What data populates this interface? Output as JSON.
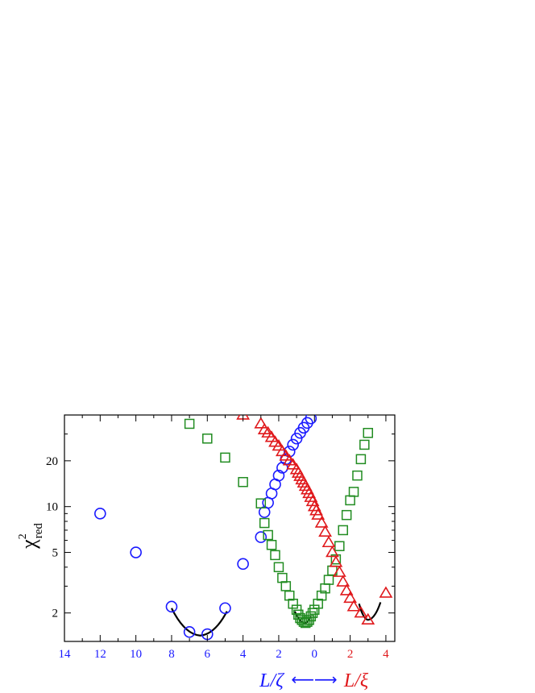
{
  "chart_data": {
    "type": "scatter",
    "title": "",
    "ylabel": {
      "symbol": "χ",
      "superscript": "2",
      "subscript": "red"
    },
    "xlabel": {
      "left": "L/ζ",
      "arrow": "⟵⟶",
      "right": "L/ξ"
    },
    "yscale": "log",
    "ylim": [
      1.3,
      40
    ],
    "yticks": [
      2,
      5,
      10,
      20
    ],
    "xlim": [
      -14,
      4.5
    ],
    "x_ticks_left": {
      "positions": [
        -14,
        -12,
        -10,
        -8,
        -6,
        -4,
        -2
      ],
      "labels": [
        "14",
        "12",
        "10",
        "8",
        "6",
        "4",
        "2"
      ],
      "color": "#1a1aff"
    },
    "x_ticks_center": {
      "positions": [
        0
      ],
      "labels": [
        "0"
      ],
      "color": "#1a1aff"
    },
    "x_ticks_right": {
      "positions": [
        2,
        4
      ],
      "labels": [
        "2",
        "4"
      ],
      "color": "#e0191c"
    },
    "colors": {
      "blue": "#1a1aff",
      "green": "#218c21",
      "red": "#e0191c",
      "fit": "#000000"
    },
    "series": [
      {
        "marker": "circle",
        "color": "#1a1aff",
        "x": [
          -12,
          -10,
          -8,
          -7,
          -6,
          -5,
          -4,
          -3,
          -2.8,
          -2.6,
          -2.4,
          -2.2,
          -2.0,
          -1.8,
          -1.6,
          -1.4,
          -1.2,
          -1.0,
          -0.8,
          -0.6,
          -0.4,
          -0.2
        ],
        "y": [
          9,
          5,
          2.2,
          1.5,
          1.45,
          2.15,
          4.2,
          6.3,
          9.2,
          10.6,
          12.2,
          14.0,
          16.0,
          18.0,
          20.5,
          23.0,
          25.5,
          28.0,
          30.5,
          33.0,
          35.5,
          38.0
        ]
      },
      {
        "marker": "square",
        "color": "#218c21",
        "x": [
          -7,
          -6,
          -5,
          -4,
          -3,
          -2.8,
          -2.6,
          -2.4,
          -2.2,
          -2.0,
          -1.8,
          -1.6,
          -1.4,
          -1.2,
          -1.0,
          -0.9,
          -0.8,
          -0.7,
          -0.6,
          -0.5,
          -0.4,
          -0.3,
          -0.2,
          -0.1,
          0.0,
          0.2,
          0.4,
          0.6,
          0.8,
          1.0,
          1.2,
          1.4,
          1.6,
          1.8,
          2.0,
          2.2,
          2.4,
          2.6,
          2.8,
          3.0
        ],
        "y": [
          35,
          28,
          21,
          14.5,
          10.5,
          7.8,
          6.5,
          5.6,
          4.8,
          4.0,
          3.4,
          3.0,
          2.6,
          2.3,
          2.1,
          1.95,
          1.85,
          1.8,
          1.75,
          1.72,
          1.75,
          1.8,
          1.9,
          2.0,
          2.1,
          2.3,
          2.6,
          2.9,
          3.3,
          3.8,
          4.5,
          5.5,
          7.0,
          8.8,
          11.0,
          12.5,
          16.0,
          20.5,
          25.5,
          30.5
        ]
      },
      {
        "marker": "triangle",
        "color": "#e0191c",
        "x": [
          -4,
          -3,
          -2.8,
          -2.6,
          -2.4,
          -2.2,
          -2.0,
          -1.8,
          -1.6,
          -1.4,
          -1.2,
          -1.0,
          -0.9,
          -0.8,
          -0.7,
          -0.6,
          -0.5,
          -0.4,
          -0.3,
          -0.2,
          -0.1,
          0.0,
          0.1,
          0.2,
          0.4,
          0.6,
          0.8,
          1.0,
          1.2,
          1.4,
          1.6,
          1.8,
          2.0,
          2.2,
          2.6,
          3.0,
          4.0
        ],
        "y": [
          40,
          35,
          32,
          30.5,
          28.5,
          26.5,
          25,
          23,
          21.5,
          20,
          18.8,
          17.5,
          16.6,
          15.8,
          15.0,
          14.3,
          13.6,
          12.9,
          12.2,
          11.5,
          10.8,
          10.0,
          9.4,
          8.8,
          7.8,
          6.8,
          5.8,
          5.0,
          4.3,
          3.7,
          3.2,
          2.8,
          2.5,
          2.2,
          2.0,
          1.8,
          2.7
        ]
      }
    ],
    "fit_curves": [
      {
        "x_from": -8.0,
        "x_to": -4.9,
        "vertex_x": -6.4,
        "vertex_y": 1.42,
        "end_left_y": 2.15,
        "end_right_y": 2.05
      },
      {
        "x_from": -1.1,
        "x_to": -0.2,
        "vertex_x": -0.55,
        "vertex_y": 1.72,
        "end_left_y": 2.05,
        "end_right_y": 1.9
      },
      {
        "x_from": 2.5,
        "x_to": 3.7,
        "vertex_x": 3.0,
        "vertex_y": 1.8,
        "end_left_y": 2.3,
        "end_right_y": 2.35
      }
    ]
  }
}
